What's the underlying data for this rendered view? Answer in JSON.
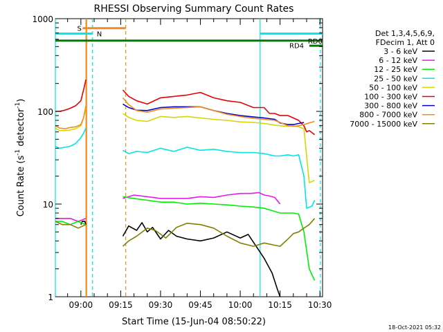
{
  "chart_data": {
    "type": "line",
    "title": "RHESSI Observing Summary Count Rates",
    "xlabel": "Start Time (15-Jun-04 08:50:22)",
    "ylabel_main": "Count Rate (s",
    "ylabel_sup1": "-1",
    "ylabel_mid": " detector",
    "ylabel_sup2": "-1",
    "ylabel_end": ")",
    "yscale": "log",
    "ylim": [
      1,
      1000
    ],
    "xlim_minutes": [
      530.4,
      631.0
    ],
    "x_ticks": [
      {
        "label": "09:00",
        "minutes": 540
      },
      {
        "label": "09:15",
        "minutes": 555
      },
      {
        "label": "09:30",
        "minutes": 570
      },
      {
        "label": "09:45",
        "minutes": 585
      },
      {
        "label": "10:00",
        "minutes": 600
      },
      {
        "label": "10:15",
        "minutes": 615
      },
      {
        "label": "10:30",
        "minutes": 630
      }
    ],
    "y_ticks": [
      {
        "label": "1",
        "value": 1
      },
      {
        "label": "10",
        "value": 10
      },
      {
        "label": "100",
        "value": 100
      },
      {
        "label": "1000",
        "value": 1000
      }
    ],
    "legend_header": [
      "Det 1,3,4,5,6,9,",
      "FDecim 1, Att 0"
    ],
    "legend_position": "right",
    "series": [
      {
        "name": "3 - 6 keV",
        "color": "#000000",
        "x": [
          540.0,
          540.5,
          541.5,
          541.9,
          555.8,
          558,
          561,
          563,
          565,
          567,
          570,
          573,
          576,
          580,
          585,
          590,
          595,
          600,
          603,
          606,
          609,
          612,
          614,
          615
        ],
        "y": [
          6,
          6.5,
          6.5,
          6,
          4.5,
          5.8,
          5.2,
          6.3,
          5.0,
          5.6,
          4.2,
          5.2,
          4.5,
          4.2,
          4.0,
          4.3,
          5.0,
          4.3,
          4.7,
          3.5,
          2.6,
          1.8,
          1.2,
          1
        ]
      },
      {
        "name": "6 - 12 keV",
        "color": "#e619e6",
        "x": [
          530.4,
          533,
          536,
          539,
          541.9,
          555.8,
          560,
          565,
          570,
          575,
          580,
          585,
          590,
          595,
          600,
          604,
          607,
          609,
          611,
          613,
          615
        ],
        "y": [
          7,
          7,
          7,
          6.5,
          7,
          11.5,
          12.5,
          12.0,
          11.5,
          11.5,
          11.5,
          12,
          11.8,
          12.5,
          13,
          13,
          13.3,
          12.5,
          12.2,
          11.8,
          10
        ]
      },
      {
        "name": "12 - 25 keV",
        "color": "#00ee00",
        "x": [
          530.4,
          533,
          536,
          539,
          541.9,
          555.8,
          560,
          565,
          570,
          575,
          580,
          585,
          590,
          595,
          600,
          605,
          609,
          612,
          615,
          620,
          622,
          624,
          626,
          628
        ],
        "y": [
          6.5,
          6.5,
          6.0,
          6.5,
          6.0,
          12,
          11.5,
          11,
          10.5,
          10.5,
          10,
          10.2,
          10,
          9.8,
          9.5,
          9.3,
          9,
          8.5,
          8.0,
          8.0,
          7.8,
          5.0,
          2.0,
          1.5
        ]
      },
      {
        "name": "25 - 50 keV",
        "color": "#00e5e5",
        "x": [
          530.4,
          532,
          534,
          536,
          538,
          540,
          541,
          541.9,
          555.8,
          558,
          561,
          565,
          570,
          575,
          580,
          585,
          590,
          595,
          600,
          605,
          609,
          611,
          613,
          615,
          618,
          620,
          622,
          624,
          625,
          627,
          628
        ],
        "y": [
          42,
          40,
          41,
          42,
          45,
          52,
          58,
          66,
          38,
          35,
          37,
          36,
          40,
          37,
          41,
          38,
          39,
          37,
          36,
          36,
          35,
          34,
          33,
          33,
          34,
          33,
          34,
          20,
          9.0,
          9.5,
          11
        ]
      },
      {
        "name": "50 - 100 keV",
        "color": "#d6d600",
        "x": [
          530.4,
          532,
          534,
          536,
          538,
          540,
          541,
          541.9,
          555.8,
          558,
          561,
          565,
          570,
          575,
          580,
          585,
          590,
          595,
          600,
          605,
          609,
          613,
          615,
          618,
          620,
          622,
          624,
          626,
          628
        ],
        "y": [
          66,
          62,
          62,
          63,
          65,
          70,
          85,
          110,
          95,
          86,
          80,
          78,
          88,
          86,
          88,
          85,
          82,
          80,
          77,
          76,
          74,
          71,
          70,
          69,
          70,
          68,
          65,
          17,
          18
        ]
      },
      {
        "name": "100 - 300 keV",
        "color": "#e60000",
        "x": [
          530.4,
          532,
          534,
          536,
          538,
          540,
          541,
          541.9,
          555.8,
          558,
          561,
          565,
          570,
          575,
          580,
          585,
          590,
          595,
          600,
          605,
          609,
          611,
          613,
          615,
          618,
          620,
          622,
          624,
          625,
          626,
          628
        ],
        "y": [
          100,
          100,
          103,
          108,
          115,
          130,
          170,
          220,
          170,
          145,
          130,
          120,
          140,
          145,
          150,
          160,
          140,
          130,
          125,
          110,
          110,
          95,
          95,
          90,
          90,
          85,
          80,
          70,
          60,
          62,
          56
        ]
      },
      {
        "name": "300 - 800 keV",
        "color": "#0000cc",
        "x": [
          555.8,
          558,
          561,
          565,
          570,
          575,
          580,
          585,
          590,
          595,
          600,
          605,
          609,
          613,
          615,
          618,
          620,
          622,
          624
        ],
        "y": [
          120,
          110,
          103,
          102,
          110,
          112,
          112,
          112,
          102,
          95,
          90,
          87,
          85,
          82,
          75,
          72,
          72,
          74,
          76
        ]
      },
      {
        "name": "800 - 7000 keV",
        "color": "#f08c1e",
        "x": [
          530.4,
          532,
          534,
          536,
          538,
          540,
          541,
          541.9,
          555.8,
          558,
          561,
          565,
          570,
          575,
          580,
          585,
          590,
          595,
          600,
          605,
          609,
          613,
          615,
          618,
          620,
          622,
          624,
          626,
          628
        ],
        "y": [
          70,
          66,
          65,
          67,
          68,
          72,
          85,
          115,
          140,
          118,
          102,
          98,
          106,
          108,
          110,
          112,
          102,
          93,
          88,
          84,
          82,
          80,
          76,
          70,
          69,
          70,
          72,
          75,
          78
        ]
      },
      {
        "name": "7000 - 15000 keV",
        "color": "#808000",
        "x": [
          530.4,
          533,
          536,
          539,
          541.9,
          555.8,
          558,
          561,
          565,
          568,
          572,
          576,
          580,
          585,
          590,
          595,
          600,
          605,
          609,
          613,
          615,
          618,
          620,
          622,
          624,
          626,
          628
        ],
        "y": [
          6.5,
          6.0,
          6.0,
          5.5,
          6.0,
          3.5,
          4.0,
          4.5,
          5.5,
          5.2,
          4.3,
          5.6,
          6.2,
          6.0,
          5.5,
          4.5,
          3.8,
          3.5,
          3.8,
          3.6,
          3.5,
          4.2,
          4.8,
          5.0,
          5.5,
          6.0,
          7.0
        ]
      }
    ],
    "annotations": {
      "flag_labels": [
        "S",
        "N",
        "RD4",
        "RD0"
      ],
      "saa_bar": {
        "label": "S",
        "color": "#f08c1e",
        "x_start": 540.7,
        "x_end": 556.9,
        "y_value": 790
      },
      "night_bars": [
        {
          "label": "N",
          "color": "#00e5e5",
          "x_start": 530.4,
          "x_end": 544.4,
          "y_value": 690
        },
        {
          "color": "#00e5e5",
          "x_start": 607.5,
          "x_end": 631.0,
          "y_value": 690
        }
      ],
      "decim_bar": {
        "label": "RD4",
        "color": "#007a00",
        "x_start": 530.4,
        "x_end": 631.0,
        "y_value": 580
      },
      "decim_bar2": {
        "label": "RD0",
        "color": "#007a00",
        "x_start": 626.0,
        "x_end": 631.0,
        "y_value": 510
      },
      "vertical_lines": [
        {
          "color": "#f08c1e",
          "style": "solid",
          "x": 541.9
        },
        {
          "color": "#f08c1e",
          "style": "solid",
          "x": 542.2
        },
        {
          "color": "#f08c1e",
          "style": "dashed",
          "x": 556.9
        },
        {
          "color": "#00e5e5",
          "style": "dashed",
          "x": 544.4
        },
        {
          "color": "#00e5e5",
          "style": "solid",
          "x": 607.5
        },
        {
          "color": "#00e5e5",
          "style": "solid",
          "x": 530.4
        },
        {
          "color": "#00e5e5",
          "style": "dashed",
          "x": 630.2
        }
      ]
    },
    "footer_date": "18-Oct-2021 05:32"
  }
}
